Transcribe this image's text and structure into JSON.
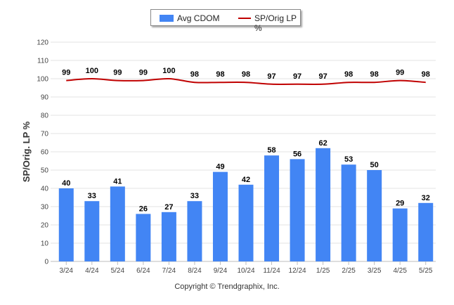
{
  "chart_data": {
    "type": "bar",
    "ylabel": "SP/Orig. LP %",
    "ylim": [
      0,
      120
    ],
    "yticks": [
      0,
      10,
      20,
      30,
      40,
      50,
      60,
      70,
      80,
      90,
      100,
      110,
      120
    ],
    "grid": true,
    "legend_position": "top-center",
    "categories": [
      "3/24",
      "4/24",
      "5/24",
      "6/24",
      "7/24",
      "8/24",
      "9/24",
      "10/24",
      "11/24",
      "12/24",
      "1/25",
      "2/25",
      "3/25",
      "4/25",
      "5/25"
    ],
    "series": [
      {
        "name": "Avg CDOM",
        "type": "bar",
        "color": "#4285f4",
        "values": [
          40,
          33,
          41,
          26,
          27,
          33,
          49,
          42,
          58,
          56,
          62,
          53,
          50,
          29,
          32
        ]
      },
      {
        "name": "SP/Orig LP %",
        "type": "line",
        "color": "#c00000",
        "values": [
          99,
          100,
          99,
          99,
          100,
          98,
          98,
          98,
          97,
          97,
          97,
          98,
          98,
          99,
          98
        ]
      }
    ]
  },
  "legend": {
    "bar_label": "Avg CDOM",
    "line_label": "SP/Orig LP %"
  },
  "footer": {
    "copyright": "Copyright © Trendgraphix, Inc."
  }
}
